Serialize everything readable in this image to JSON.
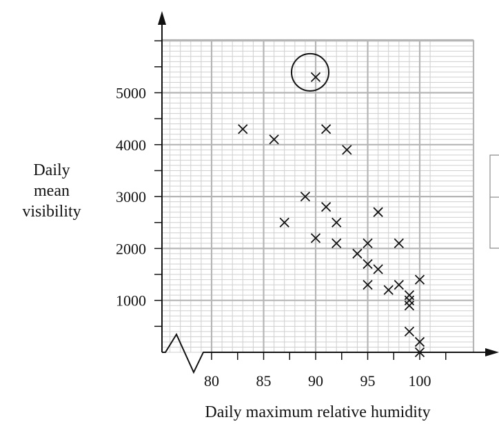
{
  "chart_data": {
    "type": "scatter",
    "xlabel": "Daily maximum relative humidity",
    "ylabel": [
      "Daily",
      "mean",
      "visibility"
    ],
    "xlim": [
      75,
      102
    ],
    "ylim": [
      0,
      6000
    ],
    "x_ticks": [
      80,
      85,
      90,
      95,
      100
    ],
    "y_ticks": [
      1000,
      2000,
      3000,
      4000,
      5000
    ],
    "x_axis_break": true,
    "grid": true,
    "marker": "x",
    "points": [
      {
        "x": 83,
        "y": 4300
      },
      {
        "x": 86,
        "y": 4100
      },
      {
        "x": 91,
        "y": 4300
      },
      {
        "x": 93,
        "y": 3900
      },
      {
        "x": 87,
        "y": 2500
      },
      {
        "x": 89,
        "y": 3000
      },
      {
        "x": 90,
        "y": 2200
      },
      {
        "x": 91,
        "y": 2800
      },
      {
        "x": 92,
        "y": 2500
      },
      {
        "x": 92,
        "y": 2100
      },
      {
        "x": 94,
        "y": 1900
      },
      {
        "x": 95,
        "y": 2100
      },
      {
        "x": 95,
        "y": 1700
      },
      {
        "x": 95,
        "y": 1300
      },
      {
        "x": 96,
        "y": 2700
      },
      {
        "x": 96,
        "y": 1600
      },
      {
        "x": 97,
        "y": 1200
      },
      {
        "x": 98,
        "y": 2100
      },
      {
        "x": 98,
        "y": 1300
      },
      {
        "x": 99,
        "y": 1100
      },
      {
        "x": 99,
        "y": 1000
      },
      {
        "x": 99,
        "y": 900
      },
      {
        "x": 99,
        "y": 400
      },
      {
        "x": 100,
        "y": 1400
      },
      {
        "x": 100,
        "y": 200
      },
      {
        "x": 100,
        "y": 0
      }
    ],
    "highlighted_point": {
      "x": 90,
      "y": 5300
    }
  }
}
